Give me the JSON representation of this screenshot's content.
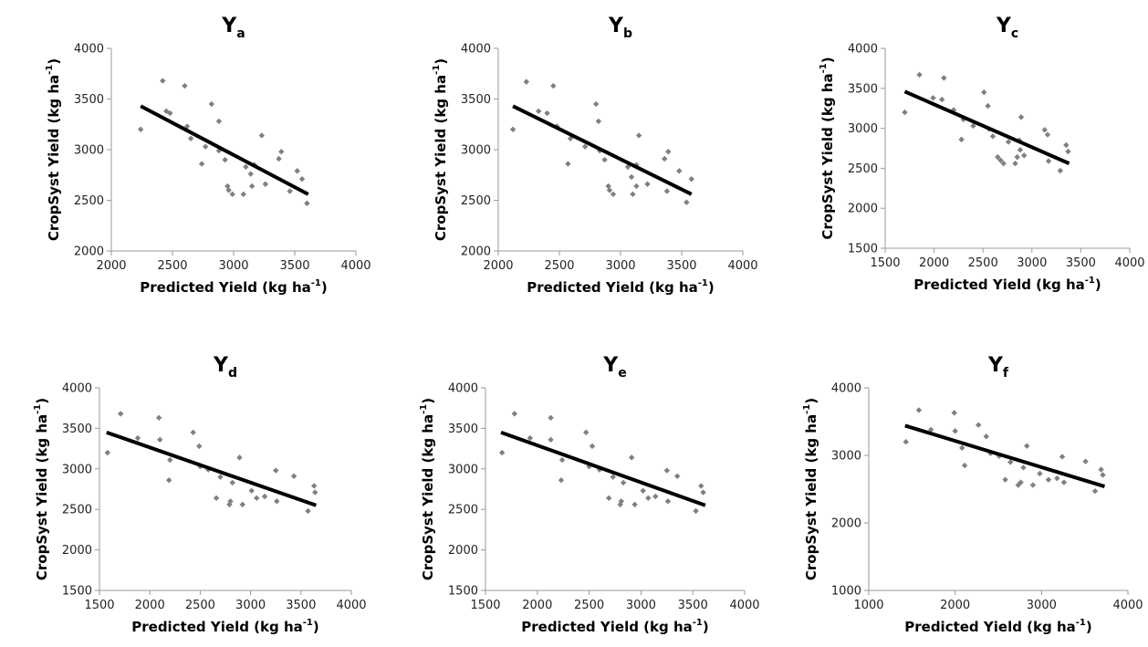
{
  "colors": {
    "points": "#808080",
    "trendline": "#000000",
    "axis": "#9a9a9a",
    "text": "#000000"
  },
  "chart_data": [
    {
      "type": "scatter",
      "title": "Y",
      "title_sub": "a",
      "xlabel": "Predicted Yield (kg ha",
      "ylabel": "CropSyst Yield (kg ha",
      "unit_sup": "-1",
      "label_close": ")",
      "xlim": [
        2000,
        4000
      ],
      "ylim": [
        2000,
        4000
      ],
      "xticks": [
        2000,
        2500,
        3000,
        3500,
        4000
      ],
      "yticks": [
        2000,
        2500,
        3000,
        3500,
        4000
      ],
      "trendline": [
        [
          2240,
          3430
        ],
        [
          3610,
          2560
        ]
      ],
      "points": [
        [
          2240,
          3200
        ],
        [
          2420,
          3680
        ],
        [
          2450,
          3380
        ],
        [
          2480,
          3360
        ],
        [
          2600,
          3630
        ],
        [
          2620,
          3230
        ],
        [
          2650,
          3110
        ],
        [
          2740,
          2860
        ],
        [
          2770,
          3030
        ],
        [
          2820,
          3450
        ],
        [
          2880,
          3280
        ],
        [
          2880,
          2990
        ],
        [
          2930,
          2900
        ],
        [
          2950,
          2640
        ],
        [
          2960,
          2600
        ],
        [
          2990,
          2560
        ],
        [
          3080,
          2560
        ],
        [
          3100,
          2830
        ],
        [
          3140,
          2760
        ],
        [
          3150,
          2640
        ],
        [
          3170,
          2850
        ],
        [
          3230,
          3140
        ],
        [
          3260,
          2660
        ],
        [
          3370,
          2910
        ],
        [
          3390,
          2980
        ],
        [
          3460,
          2590
        ],
        [
          3520,
          2790
        ],
        [
          3560,
          2710
        ],
        [
          3600,
          2470
        ]
      ]
    },
    {
      "type": "scatter",
      "title": "Y",
      "title_sub": "b",
      "xlabel": "Predicted Yield (kg ha",
      "ylabel": "CropSyst Yield (kg ha",
      "unit_sup": "-1",
      "label_close": ")",
      "xlim": [
        2000,
        4000
      ],
      "ylim": [
        2000,
        4000
      ],
      "xticks": [
        2000,
        2500,
        3000,
        3500,
        4000
      ],
      "yticks": [
        2000,
        2500,
        3000,
        3500,
        4000
      ],
      "trendline": [
        [
          2120,
          3430
        ],
        [
          3580,
          2560
        ]
      ],
      "points": [
        [
          2120,
          3200
        ],
        [
          2230,
          3670
        ],
        [
          2330,
          3380
        ],
        [
          2400,
          3360
        ],
        [
          2450,
          3630
        ],
        [
          2480,
          3230
        ],
        [
          2570,
          2860
        ],
        [
          2590,
          3110
        ],
        [
          2710,
          3030
        ],
        [
          2800,
          3450
        ],
        [
          2820,
          3280
        ],
        [
          2830,
          2990
        ],
        [
          2870,
          2900
        ],
        [
          2900,
          2640
        ],
        [
          2910,
          2600
        ],
        [
          2940,
          2560
        ],
        [
          3060,
          2830
        ],
        [
          3090,
          2730
        ],
        [
          3100,
          2560
        ],
        [
          3130,
          2640
        ],
        [
          3130,
          2850
        ],
        [
          3150,
          3140
        ],
        [
          3220,
          2660
        ],
        [
          3360,
          2910
        ],
        [
          3390,
          2980
        ],
        [
          3380,
          2590
        ],
        [
          3480,
          2790
        ],
        [
          3540,
          2480
        ],
        [
          3580,
          2710
        ]
      ]
    },
    {
      "type": "scatter",
      "title": "Y",
      "title_sub": "c",
      "xlabel": "Predicted Yield (kg ha",
      "ylabel": "CropSyst Yield (kg ha",
      "unit_sup": "-1",
      "label_close": ")",
      "xlim": [
        1500,
        4000
      ],
      "ylim": [
        1500,
        4000
      ],
      "xticks": [
        1500,
        2000,
        2500,
        3000,
        3500,
        4000
      ],
      "yticks": [
        1500,
        2000,
        2500,
        3000,
        3500,
        4000
      ],
      "trendline": [
        [
          1700,
          3460
        ],
        [
          3380,
          2560
        ]
      ],
      "points": [
        [
          1700,
          3200
        ],
        [
          1850,
          3670
        ],
        [
          1990,
          3380
        ],
        [
          2080,
          3360
        ],
        [
          2100,
          3630
        ],
        [
          2200,
          3230
        ],
        [
          2280,
          2860
        ],
        [
          2300,
          3110
        ],
        [
          2400,
          3030
        ],
        [
          2510,
          3450
        ],
        [
          2550,
          3280
        ],
        [
          2560,
          2990
        ],
        [
          2600,
          2900
        ],
        [
          2650,
          2640
        ],
        [
          2680,
          2600
        ],
        [
          2710,
          2560
        ],
        [
          2760,
          2830
        ],
        [
          2830,
          2560
        ],
        [
          2850,
          2640
        ],
        [
          2870,
          2850
        ],
        [
          2880,
          2730
        ],
        [
          2890,
          3140
        ],
        [
          2920,
          2660
        ],
        [
          3130,
          2980
        ],
        [
          3160,
          2920
        ],
        [
          3170,
          2590
        ],
        [
          3290,
          2470
        ],
        [
          3350,
          2790
        ],
        [
          3370,
          2710
        ]
      ]
    },
    {
      "type": "scatter",
      "title": "Y",
      "title_sub": "d",
      "xlabel": "Predicted Yield (kg ha",
      "ylabel": "CropSyst Yield (kg ha",
      "unit_sup": "-1",
      "label_close": ")",
      "xlim": [
        1500,
        4000
      ],
      "ylim": [
        1500,
        4000
      ],
      "xticks": [
        1500,
        2000,
        2500,
        3000,
        3500,
        4000
      ],
      "yticks": [
        1500,
        2000,
        2500,
        3000,
        3500,
        4000
      ],
      "trendline": [
        [
          1570,
          3450
        ],
        [
          3650,
          2550
        ]
      ],
      "points": [
        [
          1580,
          3200
        ],
        [
          1710,
          3680
        ],
        [
          1880,
          3380
        ],
        [
          2090,
          3630
        ],
        [
          2100,
          3360
        ],
        [
          2190,
          2860
        ],
        [
          2200,
          3110
        ],
        [
          2430,
          3450
        ],
        [
          2490,
          3280
        ],
        [
          2500,
          3030
        ],
        [
          2580,
          2990
        ],
        [
          2660,
          2640
        ],
        [
          2700,
          2900
        ],
        [
          2790,
          2560
        ],
        [
          2800,
          2600
        ],
        [
          2820,
          2830
        ],
        [
          2890,
          3140
        ],
        [
          2920,
          2560
        ],
        [
          3010,
          2730
        ],
        [
          3060,
          2640
        ],
        [
          3140,
          2660
        ],
        [
          3250,
          2980
        ],
        [
          3260,
          2600
        ],
        [
          3430,
          2910
        ],
        [
          3570,
          2480
        ],
        [
          3630,
          2790
        ],
        [
          3640,
          2710
        ]
      ]
    },
    {
      "type": "scatter",
      "title": "Y",
      "title_sub": "e",
      "xlabel": "Predicted Yield (kg ha",
      "ylabel": "CropSyst Yield (kg ha",
      "unit_sup": "-1",
      "label_close": ")",
      "xlim": [
        1500,
        4000
      ],
      "ylim": [
        1500,
        4000
      ],
      "xticks": [
        1500,
        2000,
        2500,
        3000,
        3500,
        4000
      ],
      "yticks": [
        1500,
        2000,
        2500,
        3000,
        3500,
        4000
      ],
      "trendline": [
        [
          1650,
          3450
        ],
        [
          3620,
          2550
        ]
      ],
      "points": [
        [
          1660,
          3200
        ],
        [
          1780,
          3680
        ],
        [
          1930,
          3380
        ],
        [
          2130,
          3630
        ],
        [
          2130,
          3360
        ],
        [
          2230,
          2860
        ],
        [
          2240,
          3110
        ],
        [
          2470,
          3450
        ],
        [
          2530,
          3280
        ],
        [
          2500,
          3030
        ],
        [
          2600,
          2990
        ],
        [
          2690,
          2640
        ],
        [
          2730,
          2900
        ],
        [
          2800,
          2560
        ],
        [
          2810,
          2600
        ],
        [
          2830,
          2830
        ],
        [
          2910,
          3140
        ],
        [
          2940,
          2560
        ],
        [
          3020,
          2730
        ],
        [
          3070,
          2640
        ],
        [
          3140,
          2660
        ],
        [
          3250,
          2980
        ],
        [
          3260,
          2600
        ],
        [
          3350,
          2910
        ],
        [
          3530,
          2480
        ],
        [
          3580,
          2790
        ],
        [
          3600,
          2710
        ]
      ]
    },
    {
      "type": "scatter",
      "title": "Y",
      "title_sub": "f",
      "xlabel": "Predicted Yield (kg ha",
      "ylabel": "CropSyst Yield (kg ha",
      "unit_sup": "-1",
      "label_close": ")",
      "xlim": [
        1000,
        4000
      ],
      "ylim": [
        1000,
        4000
      ],
      "xticks": [
        1000,
        2000,
        3000,
        4000
      ],
      "yticks": [
        1000,
        2000,
        3000,
        4000
      ],
      "trendline": [
        [
          1420,
          3440
        ],
        [
          3730,
          2540
        ]
      ],
      "points": [
        [
          1430,
          3200
        ],
        [
          1580,
          3670
        ],
        [
          1720,
          3380
        ],
        [
          1990,
          3630
        ],
        [
          2000,
          3360
        ],
        [
          2080,
          3110
        ],
        [
          2110,
          2850
        ],
        [
          2270,
          3450
        ],
        [
          2360,
          3280
        ],
        [
          2410,
          3030
        ],
        [
          2510,
          2990
        ],
        [
          2580,
          2640
        ],
        [
          2640,
          2900
        ],
        [
          2730,
          2560
        ],
        [
          2760,
          2600
        ],
        [
          2790,
          2820
        ],
        [
          2830,
          3140
        ],
        [
          2900,
          2560
        ],
        [
          2980,
          2730
        ],
        [
          3080,
          2640
        ],
        [
          3180,
          2660
        ],
        [
          3240,
          2980
        ],
        [
          3260,
          2600
        ],
        [
          3510,
          2910
        ],
        [
          3620,
          2470
        ],
        [
          3690,
          2790
        ],
        [
          3710,
          2710
        ]
      ]
    }
  ]
}
